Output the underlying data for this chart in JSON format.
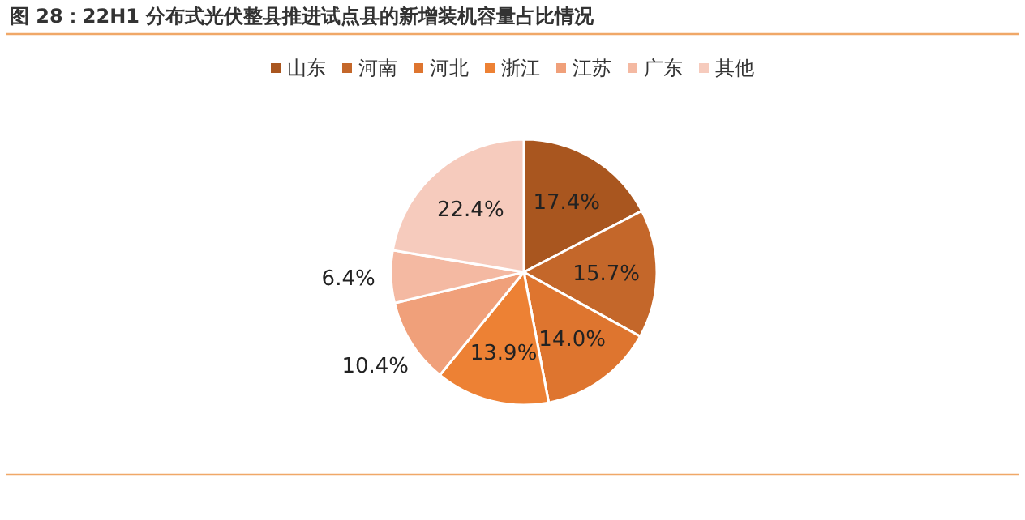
{
  "chart_data": {
    "type": "pie",
    "title": "图 28：22H1 分布式光伏整县推进试点县的新增装机容量占比情况",
    "categories": [
      "山东",
      "河南",
      "河北",
      "浙江",
      "江苏",
      "广东",
      "其他"
    ],
    "values": [
      17.4,
      15.7,
      14.0,
      13.9,
      10.4,
      6.4,
      22.4
    ],
    "value_labels": [
      "17.4%",
      "15.7%",
      "14.0%",
      "13.9%",
      "10.4%",
      "6.4%",
      "22.4%"
    ],
    "colors": [
      "#a9561f",
      "#c4672a",
      "#de752f",
      "#ed8134",
      "#f0a07a",
      "#f4b9a2",
      "#f6cbbd"
    ],
    "legend": "top"
  }
}
